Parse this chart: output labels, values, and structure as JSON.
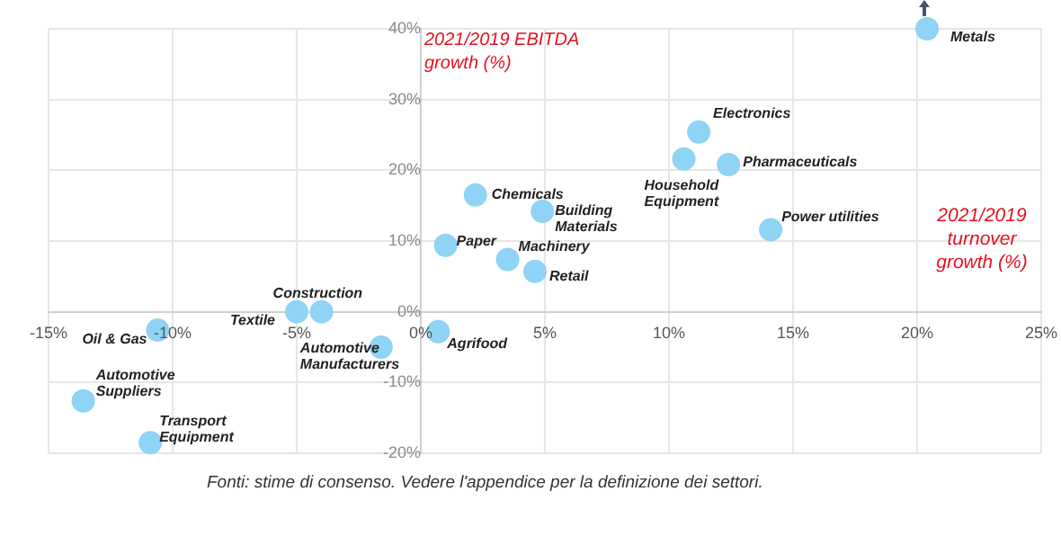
{
  "chart_data": {
    "type": "scatter",
    "xlabel": "2021/2019 turnover growth (%)",
    "ylabel": "2021/2019 EBITDA growth (%)",
    "annotations": [
      "Fonti: stime di consenso. Vedere l'appendice per la definizione dei settori."
    ],
    "xlim": [
      -15,
      25
    ],
    "xticks": [
      {
        "value": -15,
        "label": "-15%"
      },
      {
        "value": -10,
        "label": "-10%"
      },
      {
        "value": -5,
        "label": "-5%"
      },
      {
        "value": 0,
        "label": "0%"
      },
      {
        "value": 5,
        "label": "5%"
      },
      {
        "value": 10,
        "label": "10%"
      },
      {
        "value": 15,
        "label": "15%"
      },
      {
        "value": 20,
        "label": "20%"
      },
      {
        "value": 25,
        "label": "25%"
      }
    ],
    "ylim": [
      -20,
      40
    ],
    "yticks": [
      {
        "value": -20,
        "label": "-20%"
      },
      {
        "value": -10,
        "label": "-10%"
      },
      {
        "value": 0,
        "label": "0%"
      },
      {
        "value": 10,
        "label": "10%"
      },
      {
        "value": 20,
        "label": "20%"
      },
      {
        "value": 30,
        "label": "30%"
      },
      {
        "value": 40,
        "label": "40%"
      }
    ],
    "grid": true,
    "marker": "circle",
    "series": [
      {
        "color": "#8fd3f5",
        "x": [
          20.4,
          11.2,
          10.6,
          12.4,
          14.1,
          4.9,
          4.6,
          2.2,
          1.0,
          3.5,
          -4.0,
          -5.0,
          -1.6,
          0.7,
          -10.6,
          -13.6,
          -10.9
        ],
        "values": [
          40,
          25.4,
          21.6,
          20.8,
          11.6,
          14.2,
          5.7,
          16.5,
          9.4,
          7.4,
          0,
          0,
          -5.0,
          -2.8,
          -2.6,
          -12.6,
          -18.5
        ],
        "value_labels": [
          "Metals",
          "Electronics",
          "Household Equipment",
          "Pharmaceuticals",
          "Power utilities",
          "Building Materials",
          "Retail",
          "Chemicals",
          "Paper",
          "Machinery",
          "Construction",
          "Textile",
          "Automotive Manufacturers",
          "Agrifood",
          "Oil & Gas",
          "Automotive Suppliers",
          "Transport Equipment"
        ]
      }
    ]
  }
}
